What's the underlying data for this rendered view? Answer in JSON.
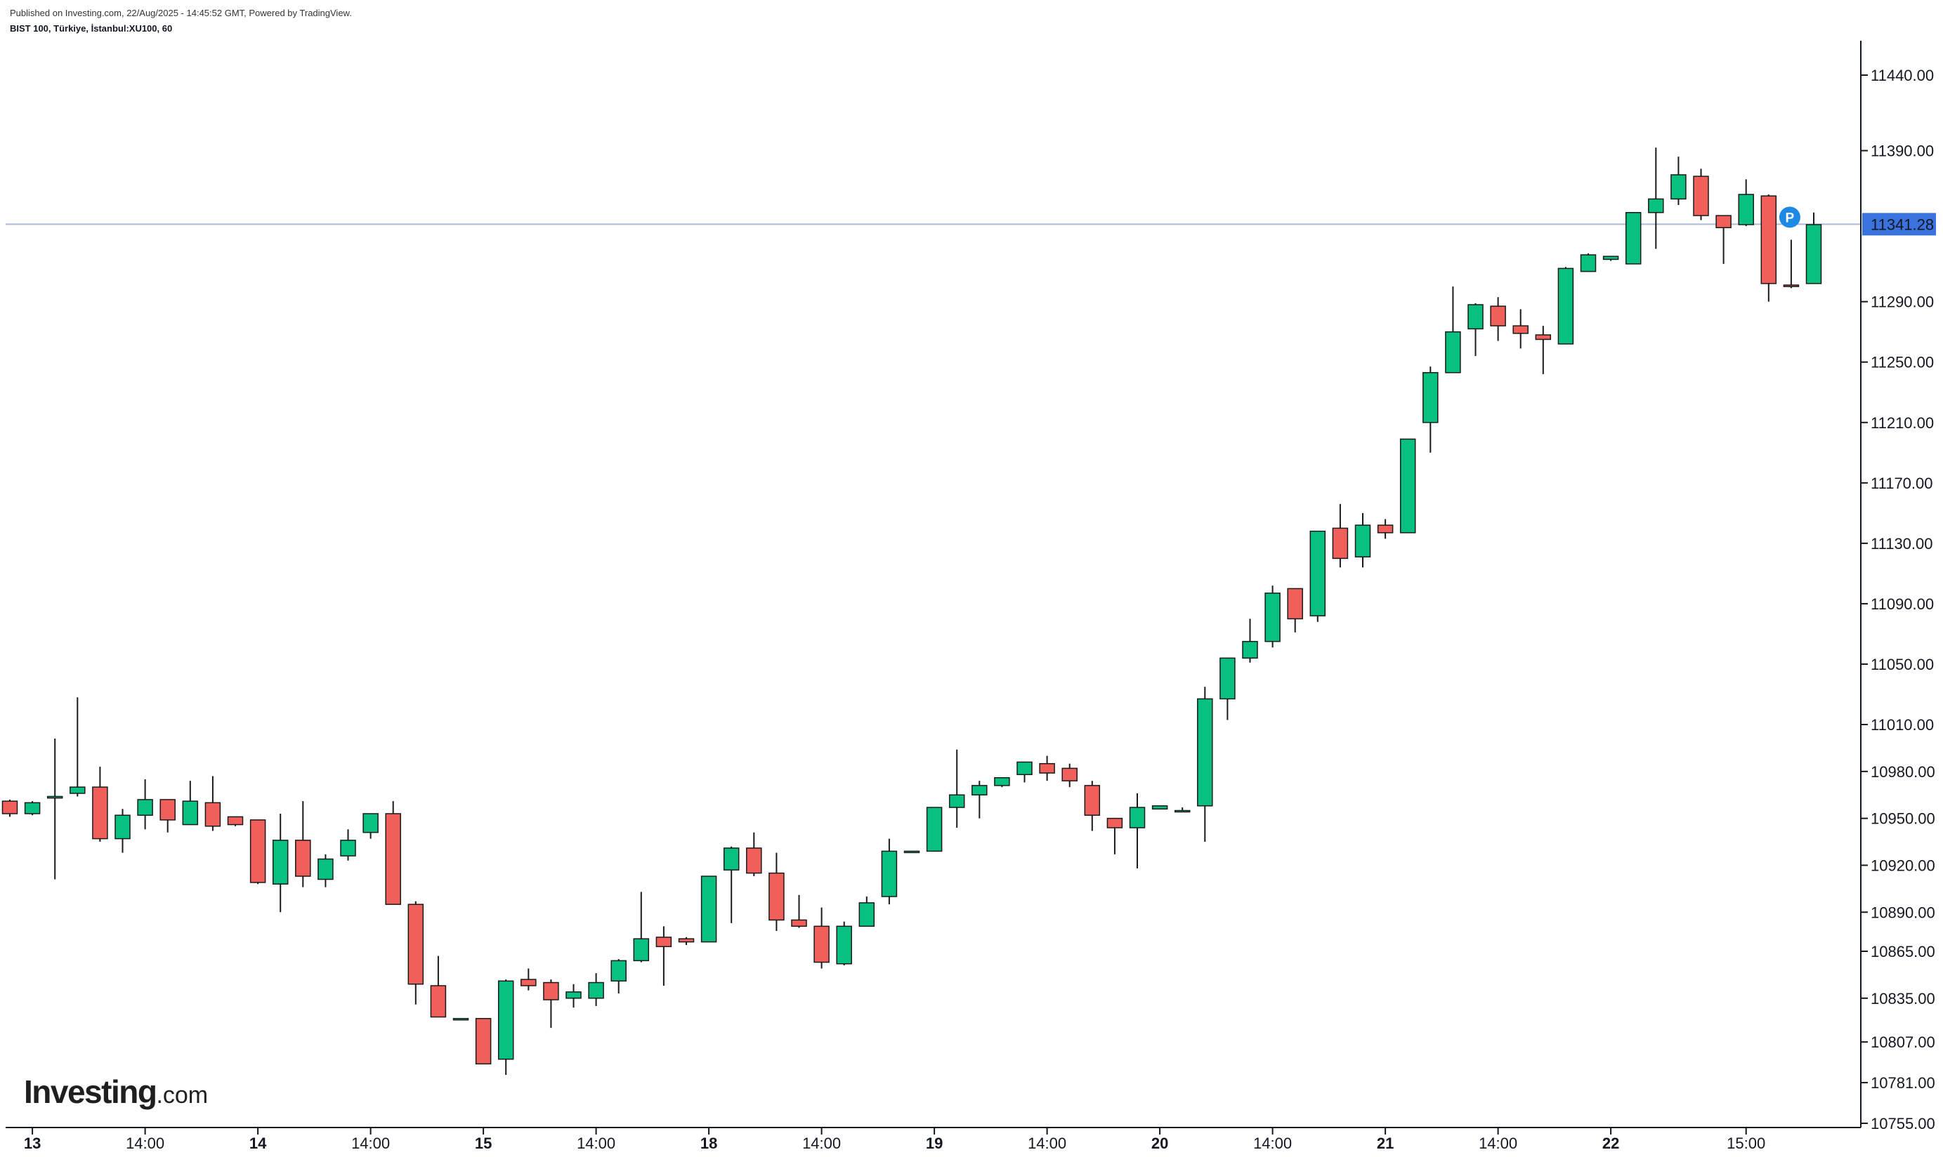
{
  "header": {
    "published": "Published on Investing.com, 22/Aug/2025 - 14:45:52 GMT, Powered by TradingView.",
    "symbol": "BIST 100, Türkiye, İstanbul:XU100, 60"
  },
  "logo": {
    "brand": "Investing",
    "tld": ".com"
  },
  "colors": {
    "up": "#08c17e",
    "down": "#f05f5a",
    "price_line": "#aabbd5",
    "price_label_bg": "#3a73de",
    "marker": "#1e88e5"
  },
  "chart_data": {
    "type": "candlestick",
    "title": "BIST 100, Türkiye, İstanbul:XU100, 60",
    "interval": "60",
    "last_price": 11341.28,
    "last_price_label": "11341.28",
    "marker_label": "P",
    "y_ticks": [
      "11440.00",
      "11390.00",
      "11290.00",
      "11250.00",
      "11210.00",
      "11170.00",
      "11130.00",
      "11090.00",
      "11050.00",
      "11010.00",
      "10980.00",
      "10950.00",
      "10920.00",
      "10890.00",
      "10865.00",
      "10835.00",
      "10807.00",
      "10781.00",
      "10755.00"
    ],
    "x_ticks": [
      {
        "label": "13",
        "day": true,
        "index": 1
      },
      {
        "label": "14:00",
        "day": false,
        "index": 6
      },
      {
        "label": "14",
        "day": true,
        "index": 11
      },
      {
        "label": "14:00",
        "day": false,
        "index": 16
      },
      {
        "label": "15",
        "day": true,
        "index": 21
      },
      {
        "label": "14:00",
        "day": false,
        "index": 26
      },
      {
        "label": "18",
        "day": true,
        "index": 31
      },
      {
        "label": "14:00",
        "day": false,
        "index": 36
      },
      {
        "label": "19",
        "day": true,
        "index": 41
      },
      {
        "label": "14:00",
        "day": false,
        "index": 46
      },
      {
        "label": "20",
        "day": true,
        "index": 51
      },
      {
        "label": "14:00",
        "day": false,
        "index": 56
      },
      {
        "label": "21",
        "day": true,
        "index": 61
      },
      {
        "label": "14:00",
        "day": false,
        "index": 66
      },
      {
        "label": "22",
        "day": true,
        "index": 71
      },
      {
        "label": "15:00",
        "day": false,
        "index": 77
      }
    ],
    "candles": [
      [
        10961,
        10962,
        10951,
        10953
      ],
      [
        10953,
        10961,
        10952,
        10960
      ],
      [
        10963,
        11001,
        10911,
        10964
      ],
      [
        10966,
        11028,
        10964,
        10970
      ],
      [
        10970,
        10983,
        10935,
        10937
      ],
      [
        10937,
        10956,
        10928,
        10952
      ],
      [
        10952,
        10975,
        10943,
        10962
      ],
      [
        10962,
        10962,
        10941,
        10949
      ],
      [
        10946,
        10974,
        10946,
        10961
      ],
      [
        10960,
        10977,
        10942,
        10945
      ],
      [
        10951,
        10951,
        10945,
        10946
      ],
      [
        10949,
        10949,
        10908,
        10909
      ],
      [
        10908,
        10953,
        10890,
        10936
      ],
      [
        10936,
        10961,
        10906,
        10913
      ],
      [
        10911,
        10927,
        10906,
        10924
      ],
      [
        10926,
        10943,
        10923,
        10936
      ],
      [
        10941,
        10952,
        10937,
        10953
      ],
      [
        10953,
        10961,
        10896,
        10895
      ],
      [
        10895,
        10897,
        10831,
        10844
      ],
      [
        10843,
        10862,
        10823,
        10823
      ],
      [
        10822,
        10822,
        10822,
        10822
      ],
      [
        10822,
        10822,
        10793,
        10793
      ],
      [
        10796,
        10847,
        10786,
        10846
      ],
      [
        10847,
        10854,
        10840,
        10843
      ],
      [
        10845,
        10847,
        10816,
        10834
      ],
      [
        10835,
        10844,
        10829,
        10839
      ],
      [
        10835,
        10851,
        10830,
        10845
      ],
      [
        10846,
        10860,
        10838,
        10859
      ],
      [
        10859,
        10903,
        10858,
        10873
      ],
      [
        10874,
        10881,
        10843,
        10868
      ],
      [
        10873,
        10874,
        10869,
        10871
      ],
      [
        10871,
        10913,
        10871,
        10913
      ],
      [
        10917,
        10932,
        10883,
        10931
      ],
      [
        10931,
        10941,
        10913,
        10915
      ],
      [
        10915,
        10928,
        10878,
        10885
      ],
      [
        10885,
        10901,
        10880,
        10881
      ],
      [
        10881,
        10893,
        10854,
        10858
      ],
      [
        10857,
        10884,
        10856,
        10881
      ],
      [
        10881,
        10900,
        10881,
        10896
      ],
      [
        10900,
        10937,
        10895,
        10929
      ],
      [
        10929,
        10929,
        10929,
        10929
      ],
      [
        10929,
        10957,
        10929,
        10957
      ],
      [
        10957,
        10994,
        10944,
        10965
      ],
      [
        10965,
        10974,
        10950,
        10971
      ],
      [
        10971,
        10976,
        10970,
        10976
      ],
      [
        10978,
        10986,
        10973,
        10986
      ],
      [
        10985,
        10990,
        10974,
        10979
      ],
      [
        10982,
        10985,
        10970,
        10974
      ],
      [
        10971,
        10974,
        10942,
        10952
      ],
      [
        10950,
        10950,
        10927,
        10944
      ],
      [
        10944,
        10966,
        10918,
        10957
      ],
      [
        10956,
        10958,
        10956,
        10958
      ],
      [
        10955,
        10957,
        10955,
        10955
      ],
      [
        10958,
        11035,
        10935,
        11027
      ],
      [
        11027,
        11054,
        11013,
        11054
      ],
      [
        11054,
        11080,
        11051,
        11065
      ],
      [
        11065,
        11102,
        11061,
        11097
      ],
      [
        11100,
        11100,
        11071,
        11080
      ],
      [
        11082,
        11138,
        11078,
        11138
      ],
      [
        11140,
        11156,
        11114,
        11120
      ],
      [
        11121,
        11150,
        11114,
        11142
      ],
      [
        11142,
        11146,
        11133,
        11137
      ],
      [
        11137,
        11199,
        11137,
        11199
      ],
      [
        11210,
        11247,
        11190,
        11243
      ],
      [
        11243,
        11300,
        11243,
        11270
      ],
      [
        11272,
        11289,
        11254,
        11288
      ],
      [
        11287,
        11293,
        11264,
        11274
      ],
      [
        11274,
        11285,
        11259,
        11269
      ],
      [
        11268,
        11274,
        11242,
        11265
      ],
      [
        11262,
        11313,
        11262,
        11312
      ],
      [
        11310,
        11322,
        11310,
        11321
      ],
      [
        11318,
        11317,
        11318,
        11320
      ],
      [
        11315,
        11349,
        11315,
        11349
      ],
      [
        11349,
        11392,
        11325,
        11358
      ],
      [
        11358,
        11386,
        11354,
        11374
      ],
      [
        11373,
        11378,
        11344,
        11347
      ],
      [
        11347,
        11346,
        11315,
        11339
      ],
      [
        11341,
        11371,
        11340,
        11361
      ],
      [
        11360,
        11361,
        11290,
        11302
      ],
      [
        11301,
        11331,
        11299,
        11300
      ],
      [
        11302,
        11349,
        11302,
        11341
      ]
    ]
  }
}
